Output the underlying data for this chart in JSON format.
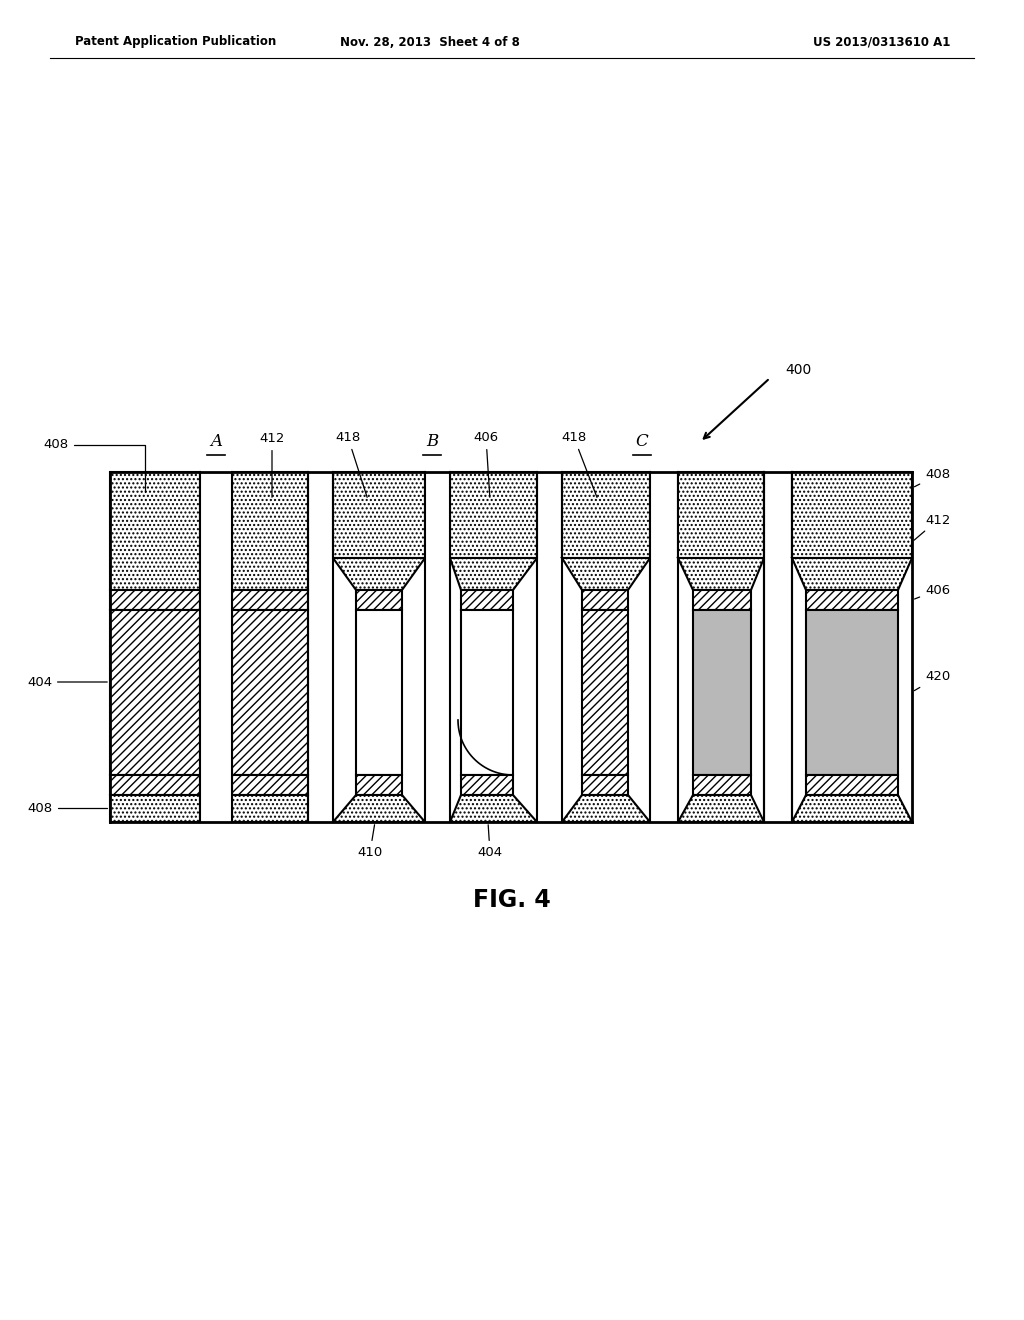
{
  "header_left": "Patent Application Publication",
  "header_mid": "Nov. 28, 2013  Sheet 4 of 8",
  "header_right": "US 2013/0313610 A1",
  "fig_label": "FIG. 4",
  "ref_400": "400",
  "bg_color": "#ffffff"
}
